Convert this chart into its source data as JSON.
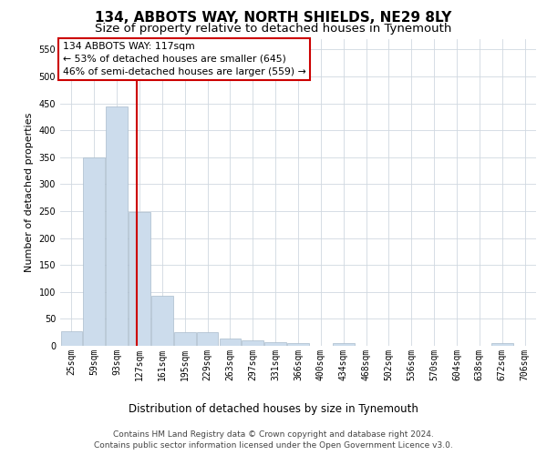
{
  "title": "134, ABBOTS WAY, NORTH SHIELDS, NE29 8LY",
  "subtitle": "Size of property relative to detached houses in Tynemouth",
  "xlabel": "Distribution of detached houses by size in Tynemouth",
  "ylabel": "Number of detached properties",
  "bar_color": "#ccdcec",
  "bar_edge_color": "#aabccc",
  "categories": [
    "25sqm",
    "59sqm",
    "93sqm",
    "127sqm",
    "161sqm",
    "195sqm",
    "229sqm",
    "263sqm",
    "297sqm",
    "331sqm",
    "366sqm",
    "400sqm",
    "434sqm",
    "468sqm",
    "502sqm",
    "536sqm",
    "570sqm",
    "604sqm",
    "638sqm",
    "672sqm",
    "706sqm"
  ],
  "values": [
    27,
    350,
    445,
    248,
    93,
    25,
    25,
    13,
    10,
    7,
    5,
    0,
    5,
    0,
    0,
    0,
    0,
    0,
    0,
    5,
    0
  ],
  "ylim": [
    0,
    570
  ],
  "yticks": [
    0,
    50,
    100,
    150,
    200,
    250,
    300,
    350,
    400,
    450,
    500,
    550
  ],
  "vline_x": 2.88,
  "vline_color": "#cc0000",
  "annotation_text": "134 ABBOTS WAY: 117sqm\n← 53% of detached houses are smaller (645)\n46% of semi-detached houses are larger (559) →",
  "annotation_box_color": "#ffffff",
  "annotation_box_edge": "#cc0000",
  "footer1": "Contains HM Land Registry data © Crown copyright and database right 2024.",
  "footer2": "Contains public sector information licensed under the Open Government Licence v3.0.",
  "bg_color": "#ffffff",
  "grid_color": "#d0d8e0",
  "title_fontsize": 11,
  "subtitle_fontsize": 9.5,
  "axis_label_fontsize": 8,
  "tick_fontsize": 7,
  "footer_fontsize": 6.5,
  "annotation_fontsize": 7.8
}
